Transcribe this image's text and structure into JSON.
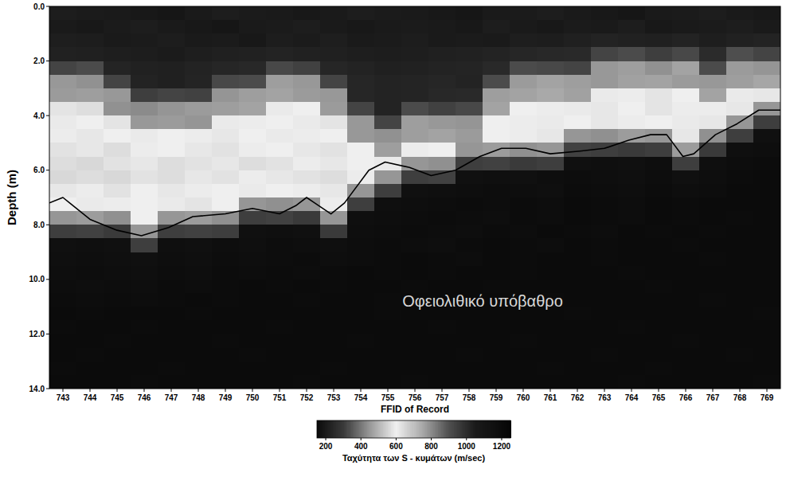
{
  "chart_data": {
    "type": "heatmap",
    "x_label": "FFID of Record",
    "y_label": "Depth (m)",
    "x": [
      743,
      744,
      745,
      746,
      747,
      748,
      749,
      750,
      751,
      752,
      753,
      754,
      755,
      756,
      757,
      758,
      759,
      760,
      761,
      762,
      763,
      764,
      765,
      766,
      767,
      768,
      769
    ],
    "y": [
      0.25,
      0.75,
      1.25,
      1.75,
      2.25,
      2.75,
      3.25,
      3.75,
      4.25,
      4.75,
      5.25,
      5.75,
      6.25,
      6.75,
      7.25,
      7.75,
      8.25,
      8.75,
      9.25,
      9.75,
      10.25,
      10.75,
      11.25,
      11.75,
      12.25,
      12.75,
      13.25,
      13.75
    ],
    "xlim": [
      742.5,
      769.5
    ],
    "ylim": [
      0,
      14
    ],
    "xticks": [
      743,
      744,
      745,
      746,
      747,
      748,
      749,
      750,
      751,
      752,
      753,
      754,
      755,
      756,
      757,
      758,
      759,
      760,
      761,
      762,
      763,
      764,
      765,
      766,
      767,
      768,
      769
    ],
    "yticks": [
      {
        "value": 0,
        "label": "0.0"
      },
      {
        "value": 2,
        "label": "2.0"
      },
      {
        "value": 4,
        "label": "4.0"
      },
      {
        "value": 6,
        "label": "6.0"
      },
      {
        "value": 8,
        "label": "8.0"
      },
      {
        "value": 10,
        "label": "10.0"
      },
      {
        "value": 12,
        "label": "12.0"
      },
      {
        "value": 14,
        "label": "14.0"
      }
    ],
    "grid": false,
    "values": [
      [
        210,
        205,
        200,
        195,
        190,
        200,
        210,
        205,
        200,
        195,
        200,
        210,
        205,
        200,
        195,
        190,
        200,
        205,
        210,
        200,
        195,
        190,
        200,
        205,
        210,
        200,
        195
      ],
      [
        200,
        195,
        205,
        210,
        200,
        195,
        190,
        200,
        205,
        210,
        200,
        195,
        200,
        205,
        200,
        195,
        210,
        200,
        195,
        205,
        200,
        210,
        195,
        200,
        205,
        210,
        200
      ],
      [
        215,
        210,
        200,
        205,
        210,
        200,
        205,
        195,
        210,
        205,
        215,
        200,
        205,
        210,
        200,
        205,
        200,
        215,
        210,
        220,
        230,
        225,
        220,
        230,
        215,
        225,
        230
      ],
      [
        225,
        220,
        215,
        210,
        205,
        215,
        220,
        225,
        230,
        225,
        220,
        215,
        210,
        215,
        220,
        225,
        230,
        240,
        245,
        250,
        320,
        330,
        310,
        325,
        255,
        335,
        320
      ],
      [
        320,
        330,
        235,
        225,
        220,
        230,
        240,
        245,
        325,
        315,
        240,
        230,
        220,
        225,
        230,
        235,
        250,
        330,
        325,
        320,
        450,
        460,
        440,
        470,
        330,
        455,
        445
      ],
      [
        450,
        440,
        320,
        230,
        220,
        235,
        325,
        330,
        460,
        450,
        320,
        240,
        230,
        235,
        240,
        230,
        330,
        455,
        470,
        460,
        450,
        465,
        470,
        455,
        450,
        460,
        475
      ],
      [
        455,
        460,
        450,
        310,
        320,
        315,
        445,
        460,
        470,
        455,
        450,
        240,
        230,
        235,
        245,
        250,
        460,
        470,
        480,
        465,
        590,
        610,
        580,
        600,
        470,
        590,
        620
      ],
      [
        580,
        570,
        440,
        430,
        445,
        455,
        460,
        470,
        590,
        600,
        455,
        320,
        230,
        330,
        315,
        325,
        470,
        600,
        610,
        590,
        620,
        600,
        580,
        610,
        595,
        620,
        780
      ],
      [
        590,
        600,
        580,
        450,
        455,
        445,
        590,
        610,
        600,
        590,
        580,
        450,
        320,
        460,
        450,
        445,
        600,
        610,
        590,
        600,
        620,
        610,
        600,
        590,
        620,
        780,
        950
      ],
      [
        610,
        620,
        600,
        590,
        600,
        610,
        620,
        600,
        590,
        610,
        600,
        450,
        440,
        460,
        470,
        455,
        600,
        610,
        620,
        780,
        790,
        770,
        780,
        620,
        790,
        950,
        1150
      ],
      [
        630,
        620,
        640,
        610,
        600,
        620,
        630,
        610,
        600,
        620,
        630,
        600,
        460,
        610,
        600,
        780,
        770,
        790,
        780,
        940,
        950,
        960,
        950,
        770,
        960,
        1160,
        1170
      ],
      [
        640,
        650,
        630,
        620,
        640,
        630,
        620,
        640,
        630,
        610,
        620,
        600,
        590,
        780,
        790,
        950,
        940,
        960,
        950,
        1150,
        1160,
        1150,
        1170,
        950,
        1160,
        1180,
        1190
      ],
      [
        650,
        640,
        650,
        630,
        640,
        620,
        630,
        610,
        620,
        630,
        640,
        610,
        780,
        950,
        940,
        1150,
        1160,
        1150,
        1170,
        1180,
        1170,
        1160,
        1180,
        1150,
        1170,
        1190,
        1200
      ],
      [
        620,
        610,
        630,
        600,
        620,
        610,
        600,
        590,
        600,
        610,
        620,
        780,
        950,
        1150,
        1160,
        1170,
        1180,
        1170,
        1160,
        1190,
        1180,
        1170,
        1190,
        1170,
        1180,
        1200,
        1200
      ],
      [
        600,
        590,
        610,
        600,
        590,
        580,
        600,
        780,
        790,
        780,
        610,
        950,
        1160,
        1170,
        1180,
        1190,
        1180,
        1190,
        1180,
        1200,
        1190,
        1180,
        1200,
        1190,
        1200,
        1200,
        1200
      ],
      [
        780,
        770,
        790,
        600,
        780,
        770,
        790,
        950,
        940,
        960,
        780,
        1160,
        1170,
        1180,
        1190,
        1180,
        1170,
        1190,
        1180,
        1200,
        1190,
        1180,
        1200,
        1190,
        1200,
        1190,
        1200
      ],
      [
        950,
        940,
        960,
        780,
        950,
        940,
        950,
        1150,
        1160,
        1150,
        960,
        1170,
        1180,
        1190,
        1180,
        1170,
        1190,
        1180,
        1200,
        1190,
        1180,
        1200,
        1190,
        1200,
        1190,
        1200,
        1200
      ],
      [
        1150,
        1160,
        1150,
        950,
        1160,
        1150,
        1170,
        1160,
        1180,
        1170,
        1160,
        1180,
        1190,
        1180,
        1170,
        1190,
        1200,
        1190,
        1180,
        1200,
        1190,
        1200,
        1200,
        1190,
        1200,
        1200,
        1200
      ],
      [
        1160,
        1170,
        1160,
        1150,
        1170,
        1160,
        1180,
        1170,
        1180,
        1190,
        1170,
        1180,
        1190,
        1200,
        1190,
        1180,
        1200,
        1190,
        1200,
        1200,
        1190,
        1200,
        1200,
        1200,
        1190,
        1200,
        1200
      ],
      [
        1170,
        1180,
        1170,
        1160,
        1180,
        1170,
        1190,
        1180,
        1190,
        1180,
        1190,
        1200,
        1190,
        1200,
        1190,
        1200,
        1200,
        1190,
        1200,
        1200,
        1200,
        1190,
        1200,
        1200,
        1200,
        1200,
        1200
      ],
      [
        1180,
        1170,
        1180,
        1170,
        1190,
        1180,
        1190,
        1200,
        1190,
        1200,
        1190,
        1200,
        1200,
        1190,
        1200,
        1200,
        1190,
        1200,
        1200,
        1200,
        1200,
        1200,
        1190,
        1200,
        1200,
        1200,
        1200
      ],
      [
        1190,
        1180,
        1190,
        1180,
        1190,
        1200,
        1190,
        1200,
        1200,
        1190,
        1200,
        1200,
        1190,
        1200,
        1200,
        1200,
        1200,
        1200,
        1190,
        1200,
        1200,
        1200,
        1200,
        1200,
        1190,
        1200,
        1200
      ],
      [
        1200,
        1190,
        1200,
        1200,
        1200,
        1190,
        1200,
        1200,
        1200,
        1200,
        1200,
        1200,
        1190,
        1200,
        1200,
        1200,
        1200,
        1200,
        1200,
        1190,
        1200,
        1200,
        1200,
        1200,
        1200,
        1200,
        1190
      ],
      [
        1190,
        1200,
        1200,
        1190,
        1200,
        1200,
        1200,
        1200,
        1190,
        1200,
        1200,
        1200,
        1200,
        1200,
        1190,
        1200,
        1200,
        1200,
        1200,
        1200,
        1200,
        1190,
        1200,
        1200,
        1200,
        1200,
        1200
      ],
      [
        1200,
        1200,
        1190,
        1200,
        1200,
        1200,
        1190,
        1200,
        1200,
        1200,
        1200,
        1190,
        1200,
        1200,
        1200,
        1200,
        1200,
        1190,
        1200,
        1200,
        1200,
        1200,
        1200,
        1190,
        1200,
        1200,
        1200
      ],
      [
        1200,
        1190,
        1200,
        1200,
        1200,
        1200,
        1200,
        1190,
        1200,
        1200,
        1200,
        1200,
        1200,
        1200,
        1200,
        1190,
        1200,
        1200,
        1200,
        1200,
        1190,
        1200,
        1200,
        1200,
        1200,
        1190,
        1200
      ],
      [
        1190,
        1200,
        1200,
        1200,
        1190,
        1200,
        1200,
        1200,
        1200,
        1200,
        1190,
        1200,
        1200,
        1200,
        1200,
        1200,
        1200,
        1200,
        1190,
        1200,
        1200,
        1200,
        1190,
        1200,
        1200,
        1200,
        1200
      ],
      [
        1200,
        1200,
        1200,
        1190,
        1200,
        1200,
        1200,
        1200,
        1200,
        1190,
        1200,
        1200,
        1200,
        1190,
        1200,
        1200,
        1200,
        1200,
        1200,
        1200,
        1200,
        1190,
        1200,
        1200,
        1200,
        1200,
        1190
      ]
    ],
    "boundary": {
      "x": [
        742.5,
        743,
        744,
        745,
        745.9,
        746.9,
        747.8,
        749,
        750,
        751,
        751.6,
        752,
        752.3,
        752.9,
        753.4,
        754.3,
        754.9,
        755.8,
        756.6,
        757.5,
        758.4,
        759.2,
        760.1,
        761,
        762.1,
        763,
        763.9,
        764.7,
        765.3,
        765.9,
        766.3,
        767.1,
        767.9,
        768.7,
        769.5
      ],
      "y": [
        7.2,
        7.0,
        7.8,
        8.2,
        8.4,
        8.1,
        7.7,
        7.6,
        7.4,
        7.6,
        7.3,
        7.0,
        7.2,
        7.6,
        7.2,
        6.0,
        5.7,
        5.9,
        6.2,
        6.0,
        5.5,
        5.2,
        5.2,
        5.4,
        5.3,
        5.2,
        4.9,
        4.7,
        4.7,
        5.5,
        5.4,
        4.7,
        4.3,
        3.8,
        3.8
      ]
    },
    "annotations": [
      {
        "text": "Οφειολιθικό υπόβαθρο",
        "x": 758.5,
        "y": 11.0
      }
    ],
    "colorbar": {
      "range": [
        150,
        1250
      ],
      "ticks": [
        200,
        400,
        600,
        800,
        1000,
        1200
      ],
      "label": "Ταχύτητα των S - κυμάτων (m/sec)"
    }
  }
}
